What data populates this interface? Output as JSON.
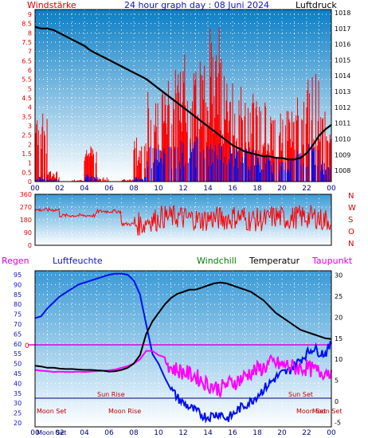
{
  "chart_data": [
    {
      "type": "line",
      "title": "24 hour graph day : 08 Juni 2024",
      "left_axis_label": "Windstärke",
      "right_axis_label": "Luftdruck",
      "x_ticks": [
        "00",
        "02",
        "04",
        "06",
        "08",
        "10",
        "12",
        "14",
        "16",
        "18",
        "20",
        "22",
        "00"
      ],
      "y_left_ticks": [
        "0",
        "0.5",
        "1",
        "1.5",
        "2",
        "2.5",
        "3",
        "3.5",
        "4",
        "4.5",
        "5",
        "5.5",
        "6",
        "6.5",
        "7",
        "7.5",
        "8",
        "8.5",
        "9"
      ],
      "y_left_range": [
        0,
        9
      ],
      "y_right_ticks": [
        "1008",
        "1009",
        "1010",
        "1011",
        "1012",
        "1013",
        "1014",
        "1015",
        "1016",
        "1017",
        "1018"
      ],
      "y_right_range": [
        1007.3,
        1018.2
      ],
      "grid": true,
      "series": [
        {
          "name": "Luftdruck",
          "x": [
            0,
            0.5,
            1,
            1.5,
            2,
            2.5,
            3,
            3.5,
            4,
            4.5,
            5,
            5.5,
            6,
            6.5,
            7,
            7.5,
            8,
            8.5,
            9,
            9.5,
            10,
            10.5,
            11,
            11.5,
            12,
            12.5,
            13,
            13.5,
            14,
            14.5,
            15,
            15.5,
            16,
            16.5,
            17,
            17.5,
            18,
            18.5,
            19,
            19.5,
            20,
            20.5,
            21,
            21.5,
            22,
            22.5,
            23,
            23.5,
            24
          ],
          "y": [
            1017.1,
            1017.0,
            1017.0,
            1016.9,
            1016.7,
            1016.5,
            1016.3,
            1016.1,
            1015.9,
            1015.6,
            1015.4,
            1015.2,
            1015.0,
            1014.8,
            1014.6,
            1014.4,
            1014.2,
            1014.0,
            1013.8,
            1013.5,
            1013.2,
            1012.9,
            1012.6,
            1012.3,
            1012.0,
            1011.7,
            1011.4,
            1011.1,
            1010.8,
            1010.5,
            1010.2,
            1009.9,
            1009.6,
            1009.4,
            1009.2,
            1009.1,
            1009.0,
            1008.9,
            1008.9,
            1008.8,
            1008.8,
            1008.7,
            1008.7,
            1008.8,
            1009.1,
            1009.6,
            1010.2,
            1010.6,
            1010.9
          ]
        },
        {
          "name": "Windgeschwindigkeit",
          "hour_avg": [
            0.2,
            0.1,
            0,
            0,
            0.3,
            0,
            0,
            0,
            0.2,
            1.5,
            1.6,
            1.7,
            1.8,
            1.9,
            1.8,
            1.5,
            1.4,
            1.4,
            1.2,
            1.0,
            1.2,
            1.3,
            1.6,
            0.9
          ],
          "hour_gust": [
            3.5,
            0.5,
            0,
            0.1,
            1.8,
            0.2,
            0,
            0.1,
            2.0,
            4.0,
            4.5,
            5.0,
            5.5,
            6.0,
            7.0,
            5.5,
            4.5,
            3.8,
            3.5,
            3.0,
            3.2,
            3.8,
            5.5,
            3.5
          ]
        }
      ]
    },
    {
      "type": "scatter",
      "left_axis_label": "",
      "y_ticks": [
        "0",
        "90",
        "180",
        "270",
        "360"
      ],
      "y_range": [
        0,
        360
      ],
      "direction_labels": [
        "N",
        "W",
        "S",
        "O",
        "N"
      ],
      "series": [
        {
          "name": "Windrichtung",
          "hour_center": [
            250,
            250,
            210,
            210,
            210,
            240,
            240,
            150,
            150,
            180,
            200,
            200,
            190,
            180,
            190,
            190,
            200,
            180,
            180,
            200,
            190,
            200,
            200,
            180
          ]
        }
      ]
    },
    {
      "type": "line",
      "label_regen": "Regen",
      "label_feuchte": "Luftfeuchte",
      "label_windchill": "Windchill",
      "label_temperatur": "Temperatur",
      "label_taupunkt": "Taupunkt",
      "y_left_ticks": [
        "20",
        "25",
        "30",
        "35",
        "40",
        "45",
        "50",
        "55",
        "60",
        "65",
        "70",
        "75",
        "80",
        "85",
        "90",
        "95"
      ],
      "y_left_range": [
        18,
        97
      ],
      "y_right_ticks": [
        "-5",
        "0",
        "5",
        "10",
        "15",
        "20",
        "25",
        "30"
      ],
      "y_right_range": [
        -6,
        31
      ],
      "zero_line_label": "0",
      "x_ticks": [
        "00",
        "02",
        "04",
        "06",
        "08",
        "10",
        "12",
        "14",
        "16",
        "18",
        "20",
        "22",
        "00"
      ],
      "annotations": {
        "sun_rise": "Sun Rise",
        "sun_set": "Sun Set",
        "moon_set_1": "Moon Set",
        "moon_rise": "Moon Rise",
        "moon_set_2": "Moon Set",
        "moon_set_3": "Moon Set",
        "bottom_left": "Moon Set"
      },
      "series": [
        {
          "name": "Luftfeuchte",
          "x": [
            0,
            0.5,
            1,
            1.5,
            2,
            2.5,
            3,
            3.5,
            4,
            4.5,
            5,
            5.5,
            6,
            6.5,
            7,
            7.5,
            8,
            8.5,
            9,
            9.5,
            10,
            10.5,
            11,
            11.5,
            12,
            12.5,
            13,
            13.5,
            14,
            14.5,
            15,
            15.5,
            16,
            16.5,
            17,
            17.5,
            18,
            18.5,
            19,
            19.5,
            20,
            20.5,
            21,
            21.5,
            22,
            22.5,
            23,
            23.5,
            24
          ],
          "y": [
            73,
            74,
            78,
            81,
            84,
            86,
            88,
            90,
            91,
            92,
            93,
            94,
            95,
            95.5,
            95.5,
            95,
            92,
            85,
            70,
            55,
            50,
            43,
            37,
            33,
            30,
            28,
            26,
            24,
            23,
            24,
            25,
            22,
            24,
            27,
            29,
            31,
            34,
            37,
            40,
            43,
            45,
            46,
            49,
            52,
            55,
            58,
            56,
            55,
            60
          ]
        },
        {
          "name": "Temperatur",
          "x": [
            0,
            0.5,
            1,
            1.5,
            2,
            2.5,
            3,
            3.5,
            4,
            4.5,
            5,
            5.5,
            6,
            6.5,
            7,
            7.5,
            8,
            8.5,
            9,
            9.5,
            10,
            10.5,
            11,
            11.5,
            12,
            12.5,
            13,
            13.5,
            14,
            14.5,
            15,
            15.5,
            16,
            16.5,
            17,
            17.5,
            18,
            18.5,
            19,
            19.5,
            20,
            20.5,
            21,
            21.5,
            22,
            22.5,
            23,
            23.5,
            24
          ],
          "y": [
            8.5,
            8.3,
            8.0,
            8.0,
            7.8,
            7.7,
            7.7,
            7.6,
            7.5,
            7.5,
            7.4,
            7.3,
            7.1,
            7.2,
            7.5,
            8.0,
            9.0,
            11.0,
            16.0,
            19.0,
            21.0,
            23.0,
            24.5,
            25.5,
            26.0,
            26.5,
            26.5,
            27.0,
            27.5,
            28.0,
            28.2,
            28.0,
            27.5,
            27.0,
            26.5,
            26.0,
            25.0,
            24.0,
            22.5,
            21.0,
            20.0,
            19.0,
            18.0,
            17.0,
            16.5,
            16.0,
            15.5,
            15.0,
            14.8
          ]
        },
        {
          "name": "Taupunkt",
          "x": [
            0,
            0.5,
            1,
            1.5,
            2,
            2.5,
            3,
            3.5,
            4,
            4.5,
            5,
            5.5,
            6,
            6.5,
            7,
            7.5,
            8,
            8.5,
            9,
            9.5,
            10,
            10.5,
            11,
            11.5,
            12,
            12.5,
            13,
            13.5,
            14,
            14.5,
            15,
            15.5,
            16,
            16.5,
            17,
            17.5,
            18,
            18.5,
            19,
            19.5,
            20,
            20.5,
            21,
            21.5,
            22,
            22.5,
            23,
            23.5,
            24
          ],
          "y": [
            7.5,
            7.3,
            7.2,
            7.0,
            7.1,
            7.0,
            7.0,
            7.1,
            7.0,
            7.1,
            7.2,
            7.3,
            7.4,
            7.6,
            8.0,
            8.4,
            9.0,
            10.0,
            12.0,
            12.0,
            11.0,
            10.5,
            8.0,
            7.5,
            7.0,
            6.5,
            6.0,
            5.0,
            4.0,
            3.5,
            3.0,
            4.0,
            4.5,
            5.0,
            6.0,
            7.0,
            7.5,
            8.0,
            9.0,
            9.0,
            8.5,
            8.5,
            8.0,
            8.0,
            8.0,
            7.5,
            7.0,
            7.2,
            7.5
          ]
        }
      ]
    }
  ]
}
